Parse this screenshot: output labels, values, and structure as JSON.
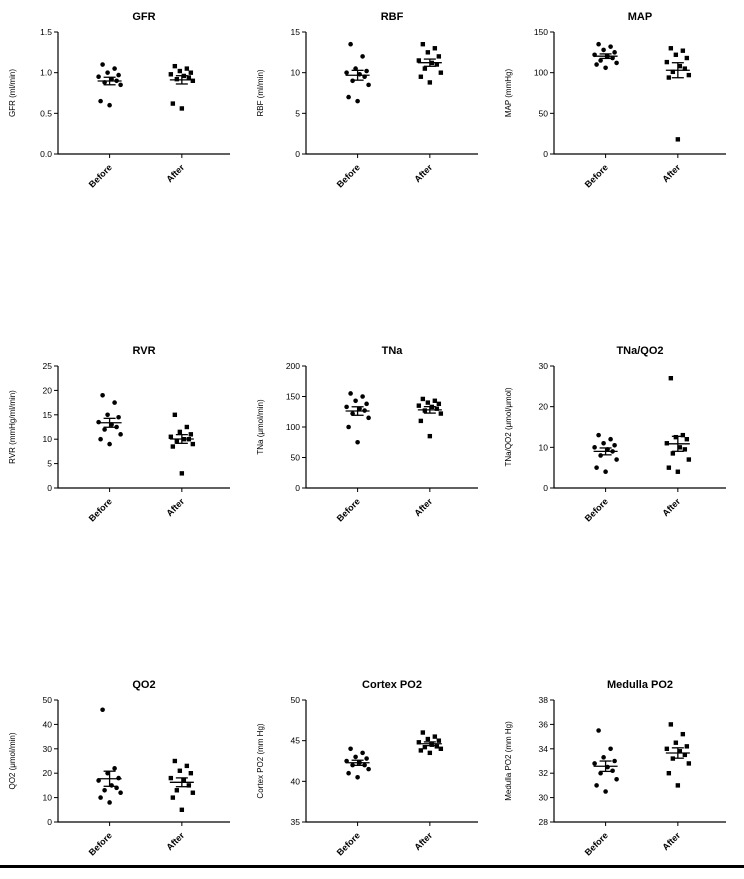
{
  "page": {
    "background": "#ffffff",
    "divider_color": "#000000"
  },
  "style": {
    "point_color": "#000000",
    "axis_color": "#000000"
  },
  "chart_data": [
    {
      "type": "scatter",
      "title": "GFR",
      "ylabel": "GFR (ml/min)",
      "ylim": [
        0,
        1.5
      ],
      "yticks": [
        "0.0",
        "0.5",
        "1.0",
        "1.5"
      ],
      "categories": [
        "Before",
        "After"
      ],
      "error_bars": "mean ± SEM",
      "series": [
        {
          "category": "Before",
          "marker": "circle",
          "values": [
            1.1,
            1.05,
            1.0,
            0.97,
            0.95,
            0.92,
            0.9,
            0.88,
            0.85,
            0.65,
            0.6
          ]
        },
        {
          "category": "After",
          "marker": "square",
          "values": [
            1.08,
            1.05,
            1.02,
            1.0,
            0.98,
            0.96,
            0.94,
            0.92,
            0.9,
            0.62,
            0.56
          ]
        }
      ]
    },
    {
      "type": "scatter",
      "title": "RBF",
      "ylabel": "RBF (ml/min)",
      "ylim": [
        0,
        15
      ],
      "yticks": [
        "0",
        "5",
        "10",
        "15"
      ],
      "categories": [
        "Before",
        "After"
      ],
      "error_bars": "mean ± SEM",
      "series": [
        {
          "category": "Before",
          "marker": "circle",
          "values": [
            13.5,
            12.0,
            10.5,
            10.2,
            10.0,
            9.8,
            9.5,
            9.0,
            8.5,
            7.0,
            6.5
          ]
        },
        {
          "category": "After",
          "marker": "square",
          "values": [
            13.5,
            13.0,
            12.5,
            12.0,
            11.5,
            11.2,
            11.0,
            10.5,
            10.0,
            9.5,
            8.8
          ]
        }
      ]
    },
    {
      "type": "scatter",
      "title": "MAP",
      "ylabel": "MAP (mmHg)",
      "ylim": [
        0,
        150
      ],
      "yticks": [
        "0",
        "50",
        "100",
        "150"
      ],
      "categories": [
        "Before",
        "After"
      ],
      "error_bars": "mean ± SEM",
      "series": [
        {
          "category": "Before",
          "marker": "circle",
          "values": [
            135,
            132,
            128,
            125,
            122,
            120,
            118,
            115,
            112,
            110,
            106
          ]
        },
        {
          "category": "After",
          "marker": "square",
          "values": [
            130,
            127,
            122,
            118,
            113,
            108,
            105,
            101,
            97,
            94,
            18
          ]
        }
      ]
    },
    {
      "type": "scatter",
      "title": "RVR",
      "ylabel": "RVR (mmHg/ml/min)",
      "ylim": [
        0,
        25
      ],
      "yticks": [
        "0",
        "5",
        "10",
        "15",
        "20",
        "25"
      ],
      "categories": [
        "Before",
        "After"
      ],
      "error_bars": "mean ± SEM",
      "series": [
        {
          "category": "Before",
          "marker": "circle",
          "values": [
            19.0,
            17.5,
            15.0,
            14.5,
            13.5,
            13.0,
            12.5,
            12.0,
            11.0,
            10.0,
            9.0
          ]
        },
        {
          "category": "After",
          "marker": "square",
          "values": [
            15.0,
            12.5,
            11.5,
            11.0,
            10.5,
            10.0,
            10.0,
            9.5,
            9.0,
            8.5,
            3.0
          ]
        }
      ]
    },
    {
      "type": "scatter",
      "title": "TNa",
      "ylabel": "TNa (μmol/min)",
      "ylim": [
        0,
        200
      ],
      "yticks": [
        "0",
        "50",
        "100",
        "150",
        "200"
      ],
      "categories": [
        "Before",
        "After"
      ],
      "error_bars": "mean ± SEM",
      "series": [
        {
          "category": "Before",
          "marker": "circle",
          "values": [
            155,
            150,
            143,
            138,
            133,
            130,
            127,
            122,
            115,
            100,
            75
          ]
        },
        {
          "category": "After",
          "marker": "square",
          "values": [
            146,
            143,
            140,
            138,
            135,
            133,
            130,
            127,
            122,
            110,
            85
          ]
        }
      ]
    },
    {
      "type": "scatter",
      "title": "TNa/QO2",
      "ylabel": "TNa/QO2 (μmol/μmol)",
      "ylim": [
        0,
        30
      ],
      "yticks": [
        "0",
        "10",
        "20",
        "30"
      ],
      "categories": [
        "Before",
        "After"
      ],
      "error_bars": "mean ± SEM",
      "series": [
        {
          "category": "Before",
          "marker": "circle",
          "values": [
            13.0,
            12.0,
            11.0,
            10.5,
            10.0,
            9.5,
            9.0,
            8.0,
            7.0,
            5.0,
            4.0
          ]
        },
        {
          "category": "After",
          "marker": "square",
          "values": [
            27.0,
            13.0,
            12.5,
            12.0,
            11.0,
            10.0,
            9.5,
            8.5,
            7.0,
            5.0,
            4.0
          ]
        }
      ]
    },
    {
      "type": "scatter",
      "title": "QO2",
      "ylabel": "QO2 (μmol/min)",
      "ylim": [
        0,
        50
      ],
      "yticks": [
        "0",
        "10",
        "20",
        "30",
        "40",
        "50"
      ],
      "categories": [
        "Before",
        "After"
      ],
      "error_bars": "mean ± SEM",
      "series": [
        {
          "category": "Before",
          "marker": "circle",
          "values": [
            46,
            22,
            20,
            18,
            17,
            15,
            14,
            13,
            12,
            10,
            8
          ]
        },
        {
          "category": "After",
          "marker": "square",
          "values": [
            25,
            23,
            21,
            20,
            18,
            17,
            15,
            13,
            12,
            10,
            5
          ]
        }
      ]
    },
    {
      "type": "scatter",
      "title": "Cortex PO2",
      "ylabel": "Cortex PO2 (mm Hg)",
      "ylim": [
        35,
        50
      ],
      "yticks": [
        "35",
        "40",
        "45",
        "50"
      ],
      "categories": [
        "Before",
        "After"
      ],
      "error_bars": "mean ± SEM",
      "series": [
        {
          "category": "Before",
          "marker": "circle",
          "values": [
            44.0,
            43.5,
            43.0,
            42.8,
            42.5,
            42.3,
            42.0,
            42.0,
            41.5,
            41.0,
            40.5
          ]
        },
        {
          "category": "After",
          "marker": "square",
          "values": [
            46.0,
            45.5,
            45.2,
            45.0,
            44.8,
            44.5,
            44.3,
            44.2,
            44.0,
            43.8,
            43.5
          ]
        }
      ]
    },
    {
      "type": "scatter",
      "title": "Medulla PO2",
      "ylabel": "Medulla PO2 (mm Hg)",
      "ylim": [
        28,
        38
      ],
      "yticks": [
        "28",
        "30",
        "32",
        "34",
        "36",
        "38"
      ],
      "categories": [
        "Before",
        "After"
      ],
      "error_bars": "mean ± SEM",
      "series": [
        {
          "category": "Before",
          "marker": "circle",
          "values": [
            35.5,
            34.0,
            33.3,
            33.0,
            32.8,
            32.5,
            32.2,
            32.0,
            31.5,
            31.0,
            30.5
          ]
        },
        {
          "category": "After",
          "marker": "square",
          "values": [
            36.0,
            35.2,
            34.5,
            34.2,
            34.0,
            33.8,
            33.5,
            33.2,
            32.8,
            32.0,
            31.0
          ]
        }
      ]
    }
  ]
}
